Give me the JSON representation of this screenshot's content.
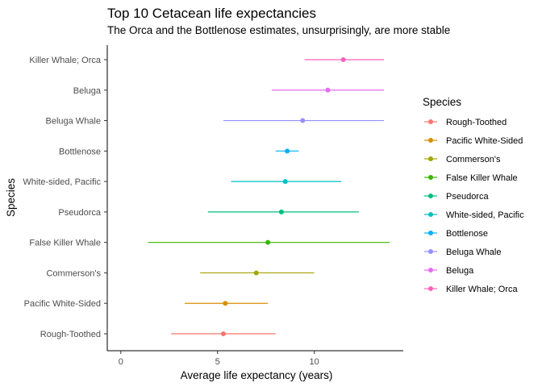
{
  "chart_data": {
    "type": "errorbar",
    "title": "Top 10 Cetacean life expectancies",
    "subtitle": "The Orca and the Bottlenose estimates, unsurprisingly, are more stable",
    "xlabel": "Average life expectancy (years)",
    "ylabel": "Species",
    "xlim": [
      -0.7,
      14.6
    ],
    "x_ticks": [
      0,
      5,
      10
    ],
    "grid": false,
    "legend": {
      "title": "Species",
      "position": "right"
    },
    "series": [
      {
        "name": "Rough-Toothed",
        "mean": 5.3,
        "low": 2.6,
        "high": 8.0,
        "color": "#F8766D"
      },
      {
        "name": "Pacific White-Sided",
        "mean": 5.4,
        "low": 3.3,
        "high": 7.6,
        "color": "#D89000"
      },
      {
        "name": "Commerson's",
        "mean": 7.0,
        "low": 4.1,
        "high": 10.0,
        "color": "#A3A500"
      },
      {
        "name": "False Killer Whale",
        "mean": 7.6,
        "low": 1.4,
        "high": 13.9,
        "color": "#39B600"
      },
      {
        "name": "Pseudorca",
        "mean": 8.3,
        "low": 4.5,
        "high": 12.3,
        "color": "#00BF7D"
      },
      {
        "name": "White-sided, Pacific",
        "mean": 8.5,
        "low": 5.7,
        "high": 11.4,
        "color": "#00BFC4"
      },
      {
        "name": "Bottlenose",
        "mean": 8.6,
        "low": 8.0,
        "high": 9.2,
        "color": "#00B0F6"
      },
      {
        "name": "Beluga Whale",
        "mean": 9.4,
        "low": 5.3,
        "high": 13.6,
        "color": "#9590FF"
      },
      {
        "name": "Beluga",
        "mean": 10.7,
        "low": 7.8,
        "high": 13.6,
        "color": "#E76BF3"
      },
      {
        "name": "Killer Whale; Orca",
        "mean": 11.5,
        "low": 9.5,
        "high": 13.6,
        "color": "#FF62BC"
      }
    ]
  }
}
